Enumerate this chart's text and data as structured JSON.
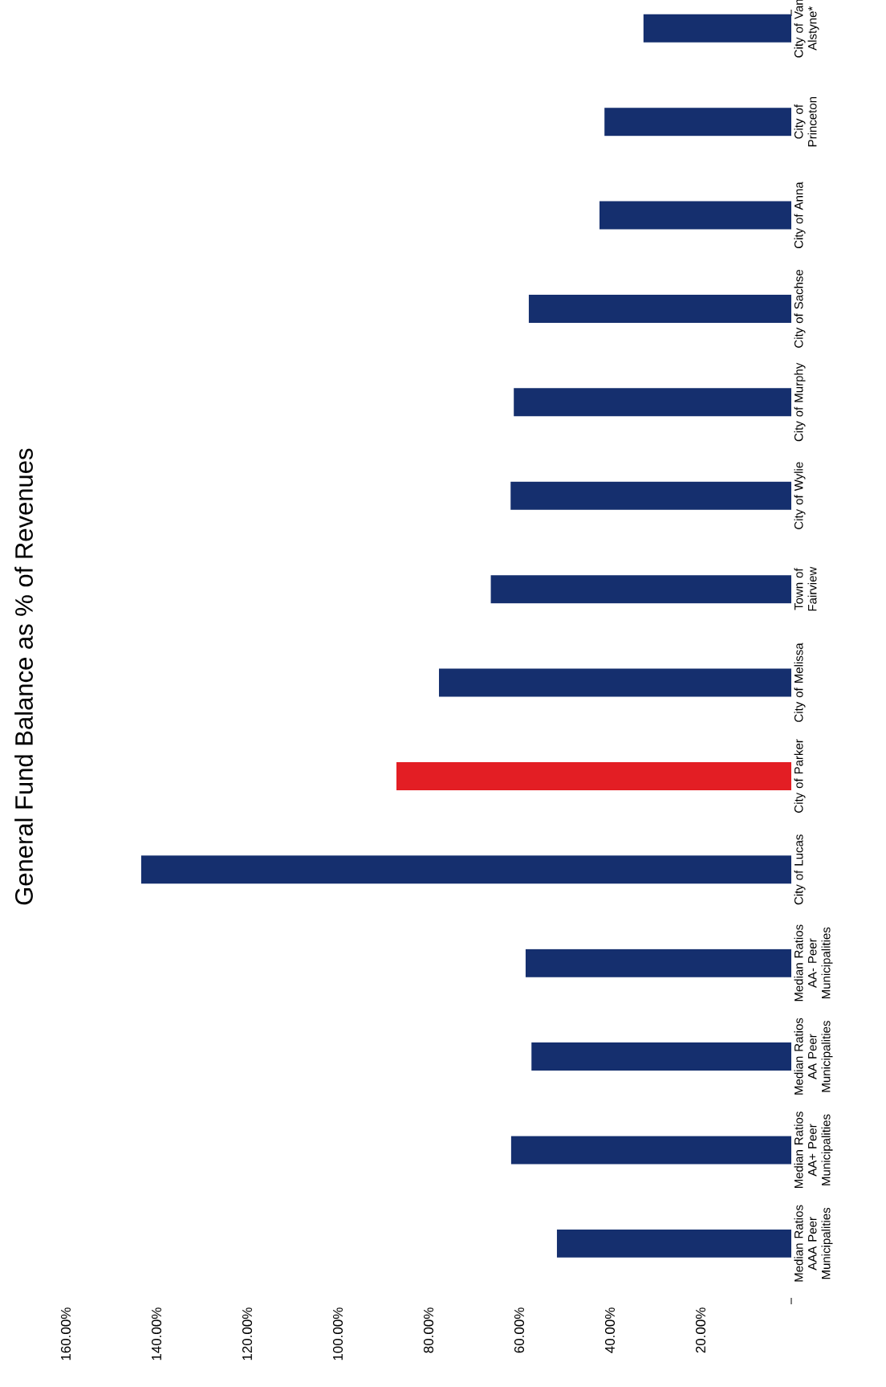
{
  "chart_data": {
    "type": "bar",
    "orientation": "horizontal",
    "title": "General Fund Balance as % of Revenues",
    "categories": [
      "City of Van Alstyne*",
      "City of Princeton",
      "City of Anna",
      "City of Sachse",
      "City of Murphy",
      "City of Wylie",
      "Town of Fairview",
      "City of Melissa",
      "City of Parker",
      "City of Lucas",
      "Median Ratios AA- Peer Municipalities",
      "Median Ratios AA Peer Municipalities",
      "Median Ratios AA+ Peer Municipalities",
      "Median Ratios AAA Peer Municipalities"
    ],
    "series": [
      {
        "values": [
          32.6,
          41.2,
          42.3,
          57.9,
          61.2,
          61.9,
          66.3,
          77.7,
          87.1,
          143.4,
          58.6,
          57.3,
          61.8,
          51.7
        ],
        "colors": [
          "#152f6e",
          "#152f6e",
          "#152f6e",
          "#152f6e",
          "#152f6e",
          "#152f6e",
          "#152f6e",
          "#152f6e",
          "#e31e24",
          "#152f6e",
          "#152f6e",
          "#152f6e",
          "#152f6e",
          "#152f6e"
        ]
      }
    ],
    "xlim": [
      160,
      0
    ],
    "xticks": [
      {
        "value": 0,
        "label": null
      },
      {
        "value": 20,
        "label": "20.00%"
      },
      {
        "value": 40,
        "label": "40.00%"
      },
      {
        "value": 60,
        "label": "60.00%"
      },
      {
        "value": 80,
        "label": "80.00%"
      },
      {
        "value": 100,
        "label": "100.00%"
      },
      {
        "value": 120,
        "label": "120.00%"
      },
      {
        "value": 140,
        "label": "140.00%"
      },
      {
        "value": 160,
        "label": "160.00%"
      }
    ]
  }
}
